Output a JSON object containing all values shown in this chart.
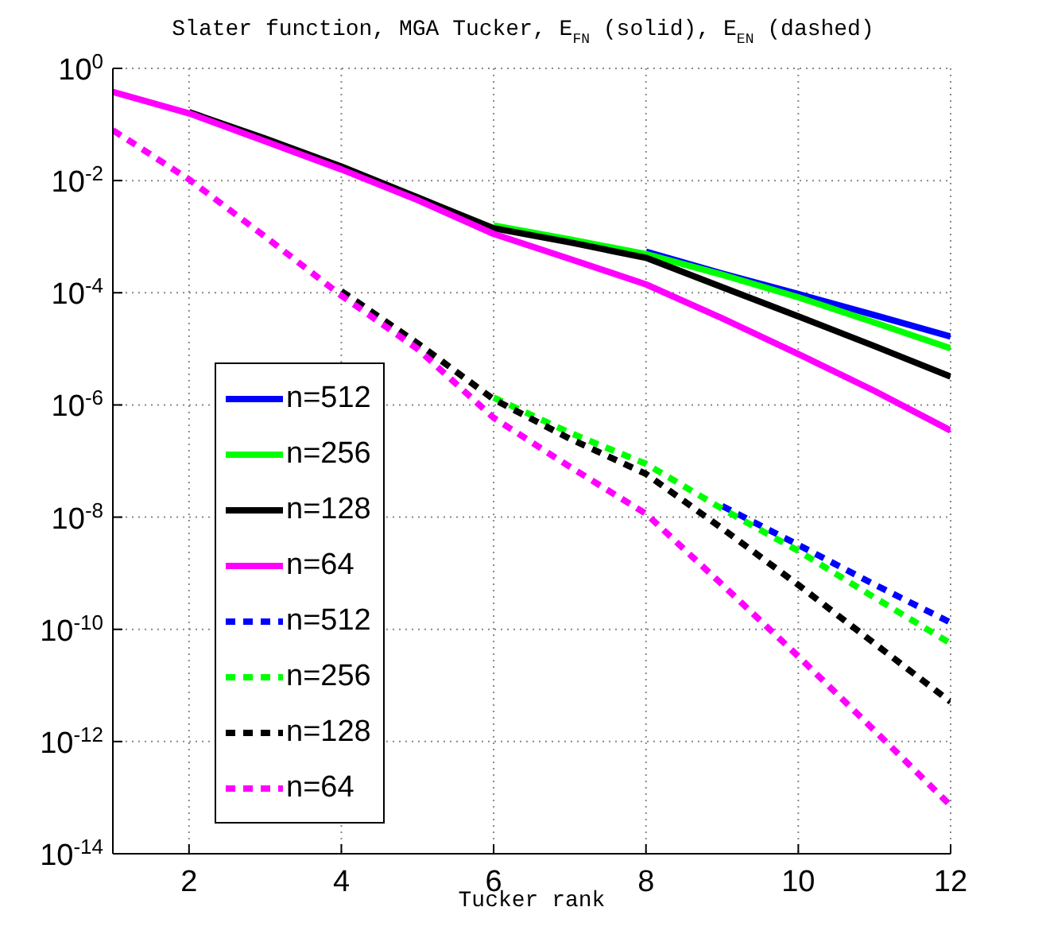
{
  "chart_data": {
    "type": "line",
    "title": "Slater function, MGA Tucker, E$_{FN}$ (solid), E$_{EN}$ (dashed)",
    "xlabel": "Tucker rank",
    "x": [
      1,
      2,
      3,
      4,
      5,
      6,
      7,
      8,
      9,
      10,
      11,
      12
    ],
    "xlim": [
      1,
      12
    ],
    "xticks": [
      2,
      4,
      6,
      8,
      10,
      12
    ],
    "log": "y",
    "ylim": [
      1e-14,
      1
    ],
    "yticks": [
      {
        "value": 1,
        "label": "10$^{0}$"
      },
      {
        "value": 0.01,
        "label": "10$^{-2}$"
      },
      {
        "value": 0.0001,
        "label": "10$^{-4}$"
      },
      {
        "value": 1e-06,
        "label": "10$^{-6}$"
      },
      {
        "value": 1e-08,
        "label": "10$^{-8}$"
      },
      {
        "value": 1e-10,
        "label": "10$^{-10}$"
      },
      {
        "value": 1e-12,
        "label": "10$^{-12}$"
      },
      {
        "value": 1e-14,
        "label": "10$^{-14}$"
      }
    ],
    "grid": true,
    "legend": "left",
    "marker": "none",
    "series": [
      {
        "name": "n=512",
        "color": "#0000ff",
        "line_style": "solid",
        "values": [
          null,
          null,
          null,
          null,
          null,
          null,
          null,
          0.00054,
          0.00022,
          9.5e-05,
          4e-05,
          1.66e-05
        ]
      },
      {
        "name": "n=256",
        "color": "#00ff00",
        "line_style": "solid",
        "values": [
          null,
          null,
          null,
          null,
          null,
          0.00158,
          0.00089,
          0.00049,
          0.00021,
          8.3e-05,
          2.95e-05,
          1.02e-05
        ]
      },
      {
        "name": "n=128",
        "color": "#000000",
        "line_style": "solid",
        "values": [
          null,
          0.166,
          0.0562,
          0.0178,
          0.00501,
          0.00141,
          0.00079,
          0.00042,
          0.000126,
          3.8e-05,
          1.12e-05,
          3.2e-06
        ]
      },
      {
        "name": "n=64",
        "color": "#ff00ff",
        "line_style": "solid",
        "values": [
          0.38,
          0.158,
          0.05,
          0.0158,
          0.0045,
          0.00112,
          0.0004,
          0.000141,
          3.5e-05,
          8.1e-06,
          1.78e-06,
          3.5e-07
        ]
      },
      {
        "name": "n=512",
        "color": "#0000ff",
        "line_style": "dashed",
        "values": [
          null,
          null,
          null,
          null,
          null,
          null,
          null,
          null,
          1.58e-08,
          3.2e-09,
          6.3e-10,
          1.32e-10
        ]
      },
      {
        "name": "n=256",
        "color": "#00ff00",
        "line_style": "dashed",
        "values": [
          null,
          null,
          null,
          null,
          null,
          1.35e-06,
          3.2e-07,
          8.9e-08,
          1.41e-08,
          2.5e-09,
          3.7e-10,
          5.6e-11
        ]
      },
      {
        "name": "n=128",
        "color": "#000000",
        "line_style": "dashed",
        "values": [
          null,
          null,
          null,
          0.000107,
          1.26e-05,
          1.26e-06,
          2.5e-07,
          5.9e-08,
          6.3e-09,
          6.2e-10,
          5.6e-11,
          5.1e-12
        ]
      },
      {
        "name": "n=64",
        "color": "#ff00ff",
        "line_style": "dashed",
        "values": [
          0.079,
          0.0105,
          0.001,
          8.9e-05,
          1e-05,
          5.9e-07,
          7.9e-08,
          1.15e-08,
          6.3e-10,
          3.3e-11,
          1.58e-12,
          7.2e-14
        ]
      }
    ]
  }
}
